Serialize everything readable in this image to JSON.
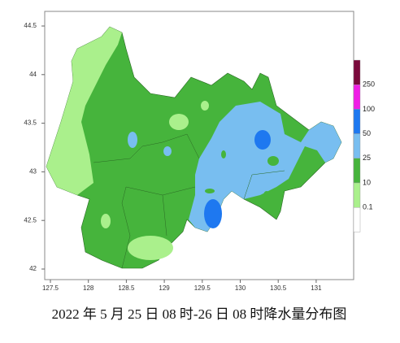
{
  "map": {
    "lat_ticks": [
      "44.5",
      "44",
      "43.5",
      "43",
      "42.5",
      "42"
    ],
    "lon_ticks": [
      "127.5",
      "128",
      "128.5",
      "129",
      "129.5",
      "130",
      "130.5",
      "131"
    ],
    "legend": {
      "labels": [
        "250",
        "100",
        "50",
        "25",
        "10",
        "0.1"
      ],
      "colors": [
        "#7a0a3c",
        "#f01ee6",
        "#1e78f0",
        "#78bef0",
        "#46b43c",
        "#aaf08c",
        "#ffffff"
      ]
    },
    "caption": "2022 年 5 月 25 日 08 时-26 日 08 时降水量分布图"
  }
}
